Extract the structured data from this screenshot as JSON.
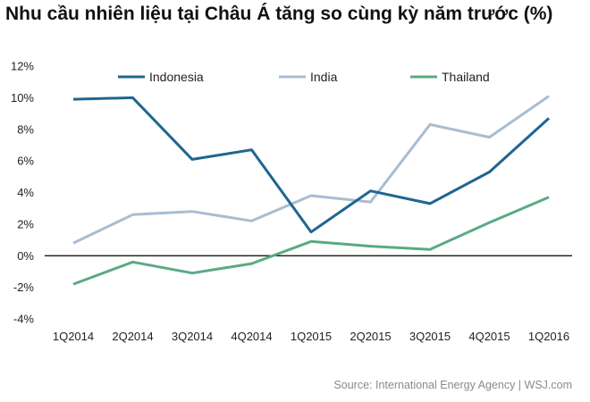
{
  "chart_data": {
    "type": "line",
    "title": "Nhu cầu nhiên liệu tại Châu Á tăng so cùng kỳ năm trước (%)",
    "categories": [
      "1Q2014",
      "2Q2014",
      "3Q2014",
      "4Q2014",
      "1Q2015",
      "2Q2015",
      "3Q2015",
      "4Q2015",
      "1Q2016"
    ],
    "series": [
      {
        "name": "Indonesia",
        "color": "#1f6591",
        "values": [
          9.9,
          10.0,
          6.1,
          6.7,
          1.5,
          4.1,
          3.3,
          5.3,
          8.7
        ]
      },
      {
        "name": "India",
        "color": "#a9bdd0",
        "values": [
          0.8,
          2.6,
          2.8,
          2.2,
          3.8,
          3.4,
          8.3,
          7.5,
          10.1
        ]
      },
      {
        "name": "Thailand",
        "color": "#5aaa84",
        "values": [
          -1.8,
          -0.4,
          -1.1,
          -0.5,
          0.9,
          0.6,
          0.4,
          2.1,
          3.7
        ]
      }
    ],
    "ylim": [
      -4,
      12
    ],
    "yticks": [
      -4,
      -2,
      0,
      2,
      4,
      6,
      8,
      10,
      12
    ],
    "ytick_labels": [
      "-4%",
      "-2%",
      "0%",
      "2%",
      "4%",
      "6%",
      "8%",
      "10%",
      "12%"
    ],
    "grid": false,
    "legend_position": "top"
  },
  "source": "Source: International Energy Agency  |  WSJ.com"
}
